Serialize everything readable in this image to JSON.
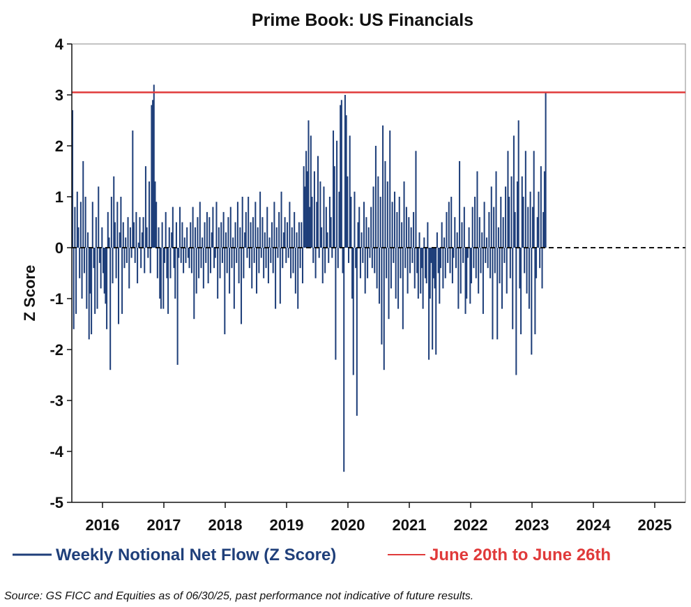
{
  "chart_data": {
    "type": "bar",
    "title": "Prime Book: US Financials",
    "ylabel": "Z Score",
    "xlabel": "",
    "ylim": [
      -5,
      4
    ],
    "xlim": [
      2015.5,
      2025.5
    ],
    "yticks": [
      4,
      3,
      2,
      1,
      0,
      -1,
      -2,
      -3,
      -4,
      -5
    ],
    "xticks": [
      "2016",
      "2017",
      "2018",
      "2019",
      "2020",
      "2021",
      "2022",
      "2023",
      "2024",
      "2025"
    ],
    "grid": false,
    "legend_position": "bottom",
    "zero_line": "dashed black",
    "colors": {
      "bars": "#1f3f7a",
      "reference": "#e03a3a",
      "text": "#111111"
    },
    "series": [
      {
        "name": "Weekly Notional Net Flow (Z Score)",
        "type": "bar",
        "start": 2015.5,
        "step_years": 0.01923,
        "values": [
          2.7,
          -1.6,
          0.8,
          -1.3,
          1.1,
          0.4,
          -0.6,
          0.9,
          -1.0,
          1.7,
          -0.5,
          1.0,
          -1.2,
          0.3,
          -1.8,
          -0.9,
          -1.7,
          0.9,
          -0.4,
          -1.3,
          0.6,
          -1.2,
          1.2,
          -0.3,
          -0.8,
          0.4,
          -0.5,
          -0.9,
          -1.1,
          -1.6,
          0.7,
          0.2,
          -2.4,
          1.0,
          -0.7,
          1.4,
          0.5,
          -0.6,
          0.9,
          -1.5,
          0.3,
          1.0,
          -1.3,
          0.5,
          -0.4,
          0.2,
          -0.3,
          0.6,
          -0.8,
          0.4,
          -0.2,
          2.3,
          0.5,
          -0.3,
          0.7,
          -0.7,
          0.1,
          0.6,
          -0.4,
          0.3,
          0.6,
          -0.5,
          1.6,
          0.4,
          -0.2,
          1.3,
          -0.5,
          2.8,
          2.9,
          3.2,
          1.3,
          0.9,
          -0.6,
          0.4,
          -1.0,
          -1.2,
          0.5,
          -1.2,
          -0.3,
          0.7,
          -0.6,
          -1.3,
          0.4,
          -0.6,
          0.3,
          0.8,
          -0.4,
          -1.0,
          0.5,
          -2.3,
          -0.2,
          0.8,
          -0.3,
          0.5,
          -0.5,
          0.2,
          -0.3,
          0.4,
          -0.2,
          -0.4,
          0.5,
          -0.5,
          0.8,
          -1.4,
          0.4,
          -0.9,
          0.6,
          -0.6,
          0.9,
          -0.4,
          0.2,
          -0.8,
          0.5,
          -0.3,
          0.7,
          -0.7,
          0.6,
          -0.5,
          0.3,
          0.8,
          -0.4,
          -0.2,
          0.9,
          -1.0,
          0.4,
          -0.6,
          0.5,
          -0.3,
          0.7,
          -1.7,
          0.3,
          -0.5,
          0.6,
          -0.9,
          0.8,
          -0.4,
          0.2,
          -1.2,
          0.5,
          -0.3,
          0.9,
          -0.7,
          0.4,
          -1.5,
          1.0,
          -0.6,
          0.3,
          0.7,
          -0.2,
          1.0,
          -0.4,
          0.5,
          -0.8,
          0.6,
          -0.3,
          0.9,
          -0.9,
          0.4,
          -0.5,
          1.1,
          -0.2,
          0.6,
          -0.6,
          0.3,
          -0.4,
          0.8,
          -0.7,
          0.2,
          -0.3,
          0.5,
          -0.5,
          0.9,
          -1.2,
          0.4,
          -0.2,
          0.7,
          -1.1,
          1.1,
          -0.4,
          0.3,
          0.6,
          -0.3,
          0.5,
          -0.2,
          0.9,
          -0.6,
          0.4,
          -0.5,
          0.7,
          -0.9,
          0.3,
          -1.2,
          0.5,
          -0.4,
          0.5,
          -0.7,
          1.6,
          1.2,
          1.9,
          1.5,
          2.5,
          0.8,
          2.2,
          1.0,
          -0.3,
          1.5,
          -0.6,
          0.9,
          1.8,
          -0.2,
          1.3,
          0.4,
          -0.7,
          1.2,
          -0.5,
          0.8,
          0.3,
          -0.3,
          1.0,
          0.6,
          -0.2,
          2.3,
          1.6,
          -2.2,
          2.1,
          -0.4,
          1.1,
          2.8,
          2.9,
          -0.5,
          -4.4,
          3.0,
          2.6,
          1.4,
          -0.3,
          2.2,
          1.0,
          -1.0,
          -2.5,
          1.1,
          -0.4,
          -3.3,
          0.5,
          0.8,
          -0.6,
          0.3,
          -0.3,
          0.9,
          -0.9,
          0.6,
          -0.6,
          0.4,
          -0.2,
          0.8,
          -0.4,
          1.2,
          -0.5,
          2.0,
          -0.8,
          1.4,
          -1.1,
          1.0,
          -1.9,
          2.4,
          -2.4,
          1.7,
          -0.6,
          1.3,
          -1.4,
          2.3,
          -0.8,
          0.9,
          -0.3,
          1.1,
          -1.0,
          0.7,
          -1.2,
          1.0,
          -0.6,
          0.5,
          -1.6,
          1.3,
          -0.4,
          0.8,
          -0.9,
          0.6,
          -0.5,
          0.4,
          -0.3,
          0.7,
          -0.8,
          1.9,
          -0.5,
          -1.0,
          0.3,
          -0.9,
          -0.4,
          -1.2,
          0.2,
          -0.6,
          -0.7,
          0.5,
          -2.2,
          -1.0,
          -0.3,
          -2.0,
          -0.6,
          -0.8,
          -2.1,
          0.3,
          -0.5,
          -1.1,
          -0.4,
          0.5,
          -0.8,
          0.2,
          -0.6,
          0.7,
          -0.3,
          0.9,
          -0.5,
          1.0,
          -0.7,
          -0.2,
          0.6,
          -0.4,
          0.3,
          -1.2,
          1.7,
          -0.9,
          0.5,
          -0.3,
          0.8,
          -1.3,
          -1.0,
          -0.2,
          0.4,
          -1.1,
          -0.7,
          0.8,
          -0.4,
          1.0,
          -0.6,
          1.5,
          -0.9,
          0.6,
          -0.5,
          0.3,
          -1.3,
          0.9,
          -0.3,
          0.2,
          -0.4,
          0.7,
          -0.6,
          1.2,
          -1.8,
          0.8,
          -0.5,
          1.5,
          -1.8,
          0.4,
          -0.7,
          1.0,
          -1.2,
          0.6,
          -0.3,
          1.2,
          -0.9,
          1.9,
          1.0,
          -0.6,
          1.4,
          -1.6,
          2.2,
          0.7,
          -2.5,
          1.3,
          2.5,
          -0.8,
          -1.7,
          1.4,
          1.0,
          -0.5,
          1.9,
          -0.9,
          0.8,
          -1.2,
          1.1,
          -2.1,
          0.8,
          1.9,
          -1.7,
          -0.6,
          0.6,
          1.1,
          -0.4,
          1.6,
          -0.8,
          0.7,
          1.5,
          3.05
        ]
      },
      {
        "name": "June 20th to June 26th",
        "type": "hline",
        "value": 3.05
      }
    ]
  },
  "legend": [
    {
      "label": "Weekly Notional Net Flow (Z Score)",
      "color": "#1f3f7a"
    },
    {
      "label": "June 20th to June 26th",
      "color": "#e03a3a"
    }
  ],
  "source_note": "Source: GS FICC and Equities as of 06/30/25, past performance not indicative of future results."
}
